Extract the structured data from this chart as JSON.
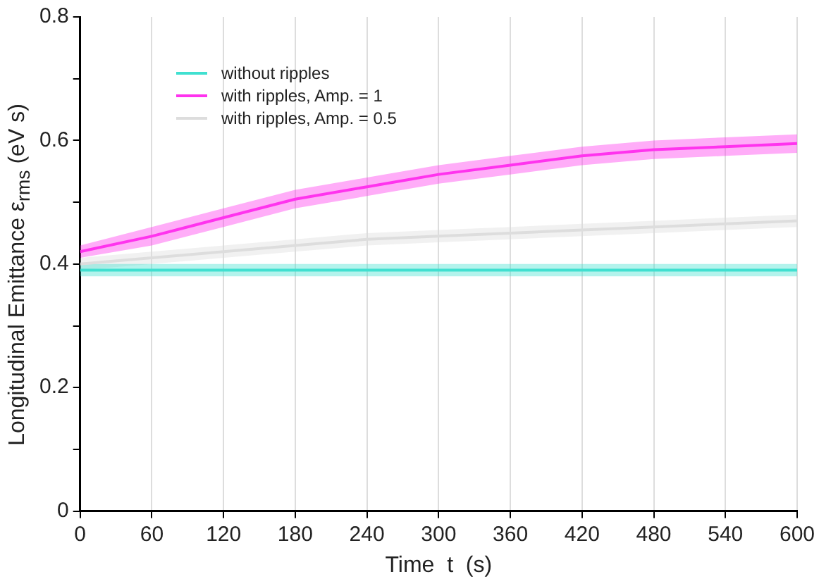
{
  "chart_data": {
    "type": "line",
    "xlabel": "Time  t  (s)",
    "ylabel": "Longitudinal Emittance  ε$_{rms}$  (eV s)",
    "x": [
      0,
      60,
      120,
      180,
      240,
      300,
      360,
      420,
      480,
      540,
      600
    ],
    "series": [
      {
        "name": "without ripples",
        "color": "#40e0d0",
        "values": [
          0.39,
          0.39,
          0.39,
          0.39,
          0.39,
          0.39,
          0.39,
          0.39,
          0.39,
          0.39,
          0.39
        ],
        "lower": [
          0.38,
          0.38,
          0.38,
          0.38,
          0.38,
          0.38,
          0.38,
          0.38,
          0.38,
          0.38,
          0.38
        ],
        "upper": [
          0.4,
          0.4,
          0.4,
          0.4,
          0.4,
          0.4,
          0.4,
          0.4,
          0.4,
          0.4,
          0.4
        ]
      },
      {
        "name": "with ripples, Amp. = 1",
        "color": "#ff33ee",
        "values": [
          0.42,
          0.445,
          0.475,
          0.505,
          0.525,
          0.545,
          0.56,
          0.575,
          0.585,
          0.59,
          0.595
        ],
        "lower": [
          0.41,
          0.43,
          0.46,
          0.49,
          0.51,
          0.53,
          0.545,
          0.56,
          0.57,
          0.575,
          0.58
        ],
        "upper": [
          0.43,
          0.46,
          0.49,
          0.52,
          0.54,
          0.56,
          0.575,
          0.59,
          0.6,
          0.605,
          0.61
        ]
      },
      {
        "name": "with ripples, Amp. = 0.5",
        "color": "#dddddd",
        "values": [
          0.4,
          0.41,
          0.42,
          0.43,
          0.44,
          0.445,
          0.45,
          0.455,
          0.46,
          0.465,
          0.47
        ],
        "lower": [
          0.39,
          0.4,
          0.41,
          0.42,
          0.43,
          0.435,
          0.44,
          0.445,
          0.45,
          0.455,
          0.46
        ],
        "upper": [
          0.41,
          0.42,
          0.43,
          0.44,
          0.45,
          0.455,
          0.46,
          0.465,
          0.47,
          0.475,
          0.48
        ]
      }
    ],
    "xlim": [
      0,
      600
    ],
    "xticks": [
      0,
      60,
      120,
      180,
      240,
      300,
      360,
      420,
      480,
      540,
      600
    ],
    "ylim": [
      0,
      0.8
    ],
    "yticks": [
      0,
      {
        "value": 0.1,
        "label": null
      },
      0.2,
      {
        "value": 0.3,
        "label": null
      },
      0.4,
      {
        "value": 0.5,
        "label": null
      },
      0.6,
      {
        "value": 0.7,
        "label": null
      },
      0.8
    ],
    "grid": "x",
    "legend": "top left",
    "marker": "none",
    "line_style": "solid"
  }
}
